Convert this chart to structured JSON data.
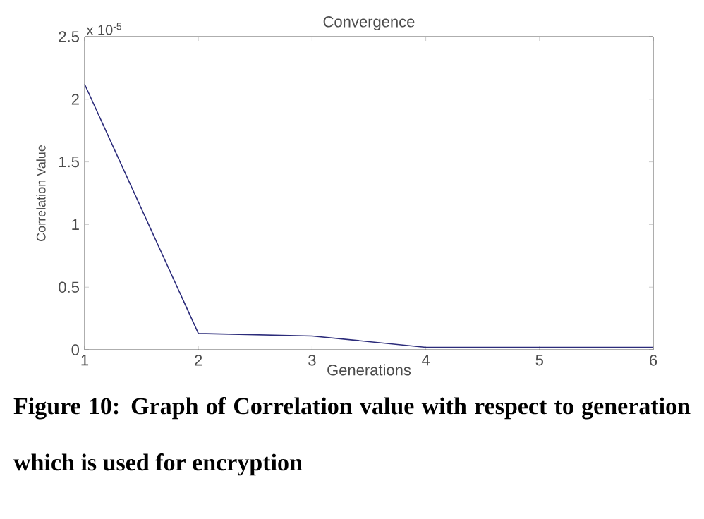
{
  "chart_data": {
    "type": "line",
    "title": "Convergence",
    "xlabel": "Generations",
    "ylabel": "Correlation Value",
    "annotations": [
      "x 10$^{-5}$",
      "Figure 10: Graph of Correlation value with respect to generation which is used for encryption"
    ],
    "x": [
      1,
      2,
      3,
      4,
      5,
      6
    ],
    "series": [
      {
        "color": "#2b2b7a",
        "values": [
          2.12,
          0.13,
          0.11,
          0.02,
          0.02,
          0.02
        ]
      }
    ],
    "xlim": [
      1,
      6
    ],
    "xticks": [
      1,
      2,
      3,
      4,
      5,
      6
    ],
    "ylim": [
      0,
      2.5
    ],
    "yticks": [
      0,
      0.5,
      1,
      1.5,
      2,
      2.5
    ]
  }
}
